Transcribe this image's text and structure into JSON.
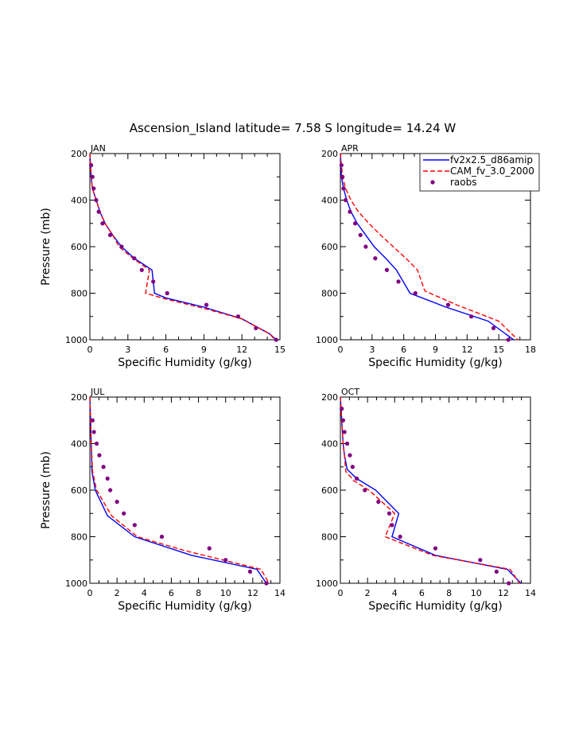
{
  "title": "Ascension_Island  latitude= 7.58 S longitude= 14.24 W",
  "legend": {
    "entries": [
      {
        "label": "fv2x2.5_d86amip",
        "color": "#0000ff",
        "style": "solid"
      },
      {
        "label": "CAM_fv_3.0_2000",
        "color": "#ff0000",
        "style": "dashed"
      },
      {
        "label": "raobs",
        "color": "#800080",
        "style": "dot"
      }
    ]
  },
  "chart_data": [
    {
      "type": "line",
      "label": "JAN",
      "xlabel": "Specific Humidity (g/kg)",
      "ylabel": "Pressure (mb)",
      "xlim": [
        0,
        15
      ],
      "xticks": [
        0,
        3,
        6,
        9,
        12,
        15
      ],
      "ylim": [
        1000,
        200
      ],
      "yticks": [
        200,
        400,
        600,
        800,
        1000
      ],
      "series": [
        {
          "name": "fv2x2.5_d86amip",
          "color": "#0000ff",
          "x": [
            0,
            0.1,
            0.2,
            0.5,
            0.8,
            1.2,
            1.8,
            2.5,
            3.5,
            4.9,
            5.1,
            6,
            9,
            12,
            14.2,
            14.7
          ],
          "p": [
            200,
            300,
            350,
            400,
            450,
            500,
            550,
            600,
            650,
            700,
            800,
            820,
            860,
            910,
            975,
            1000
          ]
        },
        {
          "name": "CAM_fv_3.0_2000",
          "color": "#ff0000",
          "x": [
            0,
            0.1,
            0.2,
            0.5,
            0.8,
            1.2,
            1.8,
            2.3,
            3.4,
            4.7,
            4.4,
            6,
            9,
            12,
            14.2,
            14.6
          ],
          "p": [
            200,
            300,
            350,
            400,
            450,
            500,
            550,
            600,
            650,
            700,
            800,
            825,
            865,
            910,
            975,
            1000
          ]
        },
        {
          "name": "raobs",
          "color": "#800080",
          "kind": "points",
          "x": [
            0.1,
            0.2,
            0.3,
            0.5,
            0.7,
            1.0,
            1.6,
            2.5,
            3.5,
            4.1,
            5.0,
            6.1,
            9.2,
            11.7,
            13.1,
            14.7
          ],
          "p": [
            250,
            300,
            350,
            400,
            450,
            500,
            550,
            600,
            650,
            700,
            750,
            800,
            850,
            900,
            950,
            1000
          ]
        }
      ]
    },
    {
      "type": "line",
      "label": "APR",
      "xlabel": "Specific Humidity (g/kg)",
      "ylabel": "",
      "xlim": [
        0,
        18
      ],
      "xticks": [
        0,
        3,
        6,
        9,
        12,
        15,
        18
      ],
      "ylim": [
        1000,
        200
      ],
      "yticks": [
        200,
        400,
        600,
        800,
        1000
      ],
      "series": [
        {
          "name": "fv2x2.5_d86amip",
          "color": "#0000ff",
          "x": [
            0,
            0.1,
            0.3,
            0.6,
            1.0,
            1.6,
            2.4,
            3.2,
            4.3,
            5.3,
            6.6,
            10,
            14,
            16.4
          ],
          "p": [
            200,
            300,
            350,
            400,
            450,
            500,
            550,
            600,
            650,
            700,
            800,
            860,
            920,
            1000
          ]
        },
        {
          "name": "CAM_fv_3.0_2000",
          "color": "#ff0000",
          "x": [
            0,
            0.2,
            0.5,
            1.0,
            1.7,
            2.7,
            3.8,
            5.0,
            6.2,
            7.3,
            8.0,
            11,
            15,
            16.8
          ],
          "p": [
            200,
            300,
            350,
            400,
            450,
            500,
            550,
            600,
            650,
            700,
            790,
            850,
            920,
            1000
          ]
        },
        {
          "name": "raobs",
          "color": "#800080",
          "kind": "points",
          "x": [
            0.1,
            0.2,
            0.3,
            0.5,
            0.9,
            1.4,
            1.9,
            2.4,
            3.3,
            4.4,
            5.5,
            7.1,
            10.2,
            12.4,
            14.5,
            15.9
          ],
          "p": [
            250,
            300,
            350,
            400,
            450,
            500,
            550,
            600,
            650,
            700,
            750,
            800,
            850,
            900,
            950,
            1000
          ]
        }
      ]
    },
    {
      "type": "line",
      "label": "JUL",
      "xlabel": "Specific Humidity (g/kg)",
      "ylabel": "Pressure (mb)",
      "xlim": [
        0,
        14
      ],
      "xticks": [
        0,
        2,
        4,
        6,
        8,
        10,
        12,
        14
      ],
      "ylim": [
        1000,
        200
      ],
      "yticks": [
        200,
        400,
        600,
        800,
        1000
      ],
      "series": [
        {
          "name": "fv2x2.5_d86amip",
          "color": "#0000ff",
          "x": [
            0,
            0.05,
            0.1,
            0.15,
            0.4,
            1.3,
            3.3,
            7.5,
            12.3,
            13.0
          ],
          "p": [
            200,
            300,
            400,
            520,
            600,
            710,
            800,
            880,
            940,
            1000
          ]
        },
        {
          "name": "CAM_fv_3.0_2000",
          "color": "#ff0000",
          "x": [
            0,
            0.05,
            0.1,
            0.2,
            0.5,
            1.6,
            3.5,
            7.0,
            12.6,
            13.2
          ],
          "p": [
            200,
            300,
            400,
            520,
            600,
            710,
            800,
            860,
            940,
            1000
          ]
        },
        {
          "name": "raobs",
          "color": "#800080",
          "kind": "points",
          "x": [
            0.2,
            0.3,
            0.5,
            0.7,
            1.0,
            1.3,
            1.5,
            2.0,
            2.5,
            3.3,
            5.3,
            8.8,
            10.0,
            11.8,
            13.0
          ],
          "p": [
            300,
            350,
            400,
            450,
            500,
            550,
            600,
            650,
            700,
            750,
            800,
            850,
            900,
            950,
            1000
          ]
        }
      ]
    },
    {
      "type": "line",
      "label": "OCT",
      "xlabel": "Specific Humidity (g/kg)",
      "ylabel": "",
      "xlim": [
        0,
        14
      ],
      "xticks": [
        0,
        2,
        4,
        6,
        8,
        10,
        12,
        14
      ],
      "ylim": [
        1000,
        200
      ],
      "yticks": [
        200,
        400,
        600,
        800,
        1000
      ],
      "series": [
        {
          "name": "fv2x2.5_d86amip",
          "color": "#0000ff",
          "x": [
            0,
            0.1,
            0.2,
            0.3,
            0.5,
            1.2,
            2.6,
            4.3,
            3.8,
            7.0,
            12.3,
            13.3
          ],
          "p": [
            200,
            300,
            400,
            450,
            510,
            550,
            600,
            700,
            800,
            880,
            940,
            1000
          ]
        },
        {
          "name": "CAM_fv_3.0_2000",
          "color": "#ff0000",
          "x": [
            0,
            0.1,
            0.2,
            0.3,
            0.4,
            1.0,
            2.1,
            4.0,
            3.3,
            6.8,
            12.5,
            13.2
          ],
          "p": [
            200,
            300,
            400,
            450,
            520,
            560,
            600,
            700,
            800,
            880,
            940,
            1000
          ]
        },
        {
          "name": "raobs",
          "color": "#800080",
          "kind": "points",
          "x": [
            0.1,
            0.2,
            0.3,
            0.5,
            0.7,
            0.9,
            1.2,
            1.8,
            2.8,
            3.6,
            3.8,
            4.4,
            7.0,
            10.3,
            11.5,
            12.4
          ],
          "p": [
            250,
            300,
            350,
            400,
            450,
            500,
            550,
            600,
            650,
            700,
            750,
            800,
            850,
            900,
            950,
            1000
          ]
        }
      ]
    }
  ]
}
